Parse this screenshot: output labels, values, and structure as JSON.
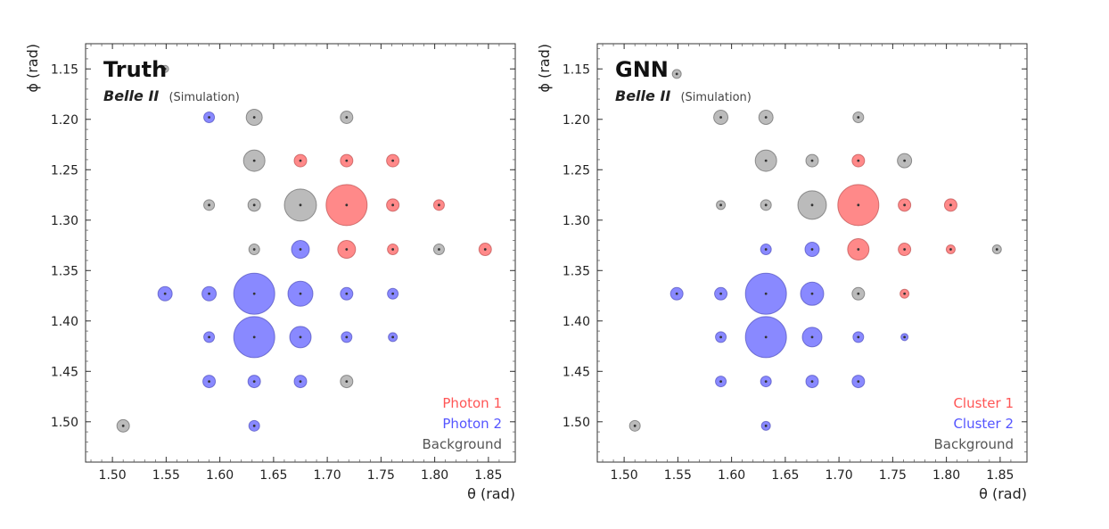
{
  "colors": {
    "series1": "#ff6b6b",
    "series2": "#6b6bff",
    "background": "#aaaaaa",
    "legend1": "#ff5555",
    "legend2": "#5555ff",
    "legend3": "#555555"
  },
  "chart_data": [
    {
      "type": "scatter",
      "panel_title": "Truth",
      "experiment": "Belle II",
      "experiment_note": "(Simulation)",
      "xlabel": "θ (rad)",
      "ylabel": "ϕ (rad)",
      "xlim": [
        1.475,
        1.875
      ],
      "ylim": [
        1.54,
        1.125
      ],
      "y_inverted": true,
      "x_ticks": [
        "1.50",
        "1.55",
        "1.60",
        "1.65",
        "1.70",
        "1.75",
        "1.80",
        "1.85"
      ],
      "y_ticks": [
        "1.15",
        "1.20",
        "1.25",
        "1.30",
        "1.35",
        "1.40",
        "1.45",
        "1.50"
      ],
      "legend": [
        "Photon 1",
        "Photon 2",
        "Background"
      ],
      "legend_position": "lower right",
      "points": [
        {
          "x": 1.549,
          "y": 1.15,
          "s": 4,
          "c": "bg"
        },
        {
          "x": 1.59,
          "y": 1.198,
          "s": 6,
          "c": "p2"
        },
        {
          "x": 1.632,
          "y": 1.198,
          "s": 9,
          "c": "bg"
        },
        {
          "x": 1.718,
          "y": 1.198,
          "s": 7,
          "c": "bg"
        },
        {
          "x": 1.632,
          "y": 1.241,
          "s": 12,
          "c": "bg"
        },
        {
          "x": 1.675,
          "y": 1.241,
          "s": 7,
          "c": "p1"
        },
        {
          "x": 1.718,
          "y": 1.241,
          "s": 7,
          "c": "p1"
        },
        {
          "x": 1.761,
          "y": 1.241,
          "s": 7,
          "c": "p1"
        },
        {
          "x": 1.59,
          "y": 1.285,
          "s": 6,
          "c": "bg"
        },
        {
          "x": 1.632,
          "y": 1.285,
          "s": 7,
          "c": "bg"
        },
        {
          "x": 1.675,
          "y": 1.285,
          "s": 18,
          "c": "bg"
        },
        {
          "x": 1.718,
          "y": 1.285,
          "s": 23,
          "c": "p1"
        },
        {
          "x": 1.761,
          "y": 1.285,
          "s": 7,
          "c": "p1"
        },
        {
          "x": 1.804,
          "y": 1.285,
          "s": 6,
          "c": "p1"
        },
        {
          "x": 1.632,
          "y": 1.329,
          "s": 6,
          "c": "bg"
        },
        {
          "x": 1.675,
          "y": 1.329,
          "s": 10,
          "c": "p2"
        },
        {
          "x": 1.718,
          "y": 1.329,
          "s": 10,
          "c": "p1"
        },
        {
          "x": 1.761,
          "y": 1.329,
          "s": 6,
          "c": "p1"
        },
        {
          "x": 1.804,
          "y": 1.329,
          "s": 6,
          "c": "bg"
        },
        {
          "x": 1.847,
          "y": 1.329,
          "s": 7,
          "c": "p1"
        },
        {
          "x": 1.549,
          "y": 1.373,
          "s": 8,
          "c": "p2"
        },
        {
          "x": 1.59,
          "y": 1.373,
          "s": 8,
          "c": "p2"
        },
        {
          "x": 1.632,
          "y": 1.373,
          "s": 23,
          "c": "p2"
        },
        {
          "x": 1.675,
          "y": 1.373,
          "s": 14,
          "c": "p2"
        },
        {
          "x": 1.718,
          "y": 1.373,
          "s": 7,
          "c": "p2"
        },
        {
          "x": 1.761,
          "y": 1.373,
          "s": 6,
          "c": "p2"
        },
        {
          "x": 1.59,
          "y": 1.416,
          "s": 6,
          "c": "p2"
        },
        {
          "x": 1.632,
          "y": 1.416,
          "s": 23,
          "c": "p2"
        },
        {
          "x": 1.675,
          "y": 1.416,
          "s": 12,
          "c": "p2"
        },
        {
          "x": 1.718,
          "y": 1.416,
          "s": 6,
          "c": "p2"
        },
        {
          "x": 1.761,
          "y": 1.416,
          "s": 5,
          "c": "p2"
        },
        {
          "x": 1.59,
          "y": 1.46,
          "s": 7,
          "c": "p2"
        },
        {
          "x": 1.632,
          "y": 1.46,
          "s": 7,
          "c": "p2"
        },
        {
          "x": 1.675,
          "y": 1.46,
          "s": 7,
          "c": "p2"
        },
        {
          "x": 1.718,
          "y": 1.46,
          "s": 7,
          "c": "bg"
        },
        {
          "x": 1.51,
          "y": 1.504,
          "s": 7,
          "c": "bg"
        },
        {
          "x": 1.632,
          "y": 1.504,
          "s": 6,
          "c": "p2"
        }
      ]
    },
    {
      "type": "scatter",
      "panel_title": "GNN",
      "experiment": "Belle II",
      "experiment_note": "(Simulation)",
      "xlabel": "θ (rad)",
      "ylabel": "ϕ (rad)",
      "xlim": [
        1.475,
        1.875
      ],
      "ylim": [
        1.54,
        1.125
      ],
      "y_inverted": true,
      "x_ticks": [
        "1.50",
        "1.55",
        "1.60",
        "1.65",
        "1.70",
        "1.75",
        "1.80",
        "1.85"
      ],
      "y_ticks": [
        "1.15",
        "1.20",
        "1.25",
        "1.30",
        "1.35",
        "1.40",
        "1.45",
        "1.50"
      ],
      "legend": [
        "Cluster 1",
        "Cluster 2",
        "Background"
      ],
      "legend_position": "lower right",
      "points": [
        {
          "x": 1.549,
          "y": 1.155,
          "s": 5,
          "c": "bg"
        },
        {
          "x": 1.59,
          "y": 1.198,
          "s": 8,
          "c": "bg"
        },
        {
          "x": 1.632,
          "y": 1.198,
          "s": 8,
          "c": "bg"
        },
        {
          "x": 1.718,
          "y": 1.198,
          "s": 6,
          "c": "bg"
        },
        {
          "x": 1.632,
          "y": 1.241,
          "s": 12,
          "c": "bg"
        },
        {
          "x": 1.675,
          "y": 1.241,
          "s": 7,
          "c": "bg"
        },
        {
          "x": 1.718,
          "y": 1.241,
          "s": 7,
          "c": "p1"
        },
        {
          "x": 1.761,
          "y": 1.241,
          "s": 8,
          "c": "bg"
        },
        {
          "x": 1.59,
          "y": 1.285,
          "s": 5,
          "c": "bg"
        },
        {
          "x": 1.632,
          "y": 1.285,
          "s": 6,
          "c": "bg"
        },
        {
          "x": 1.675,
          "y": 1.285,
          "s": 16,
          "c": "bg"
        },
        {
          "x": 1.718,
          "y": 1.285,
          "s": 23,
          "c": "p1"
        },
        {
          "x": 1.761,
          "y": 1.285,
          "s": 7,
          "c": "p1"
        },
        {
          "x": 1.804,
          "y": 1.285,
          "s": 7,
          "c": "p1"
        },
        {
          "x": 1.632,
          "y": 1.329,
          "s": 6,
          "c": "p2"
        },
        {
          "x": 1.675,
          "y": 1.329,
          "s": 8,
          "c": "p2"
        },
        {
          "x": 1.718,
          "y": 1.329,
          "s": 12,
          "c": "p1"
        },
        {
          "x": 1.761,
          "y": 1.329,
          "s": 7,
          "c": "p1"
        },
        {
          "x": 1.804,
          "y": 1.329,
          "s": 5,
          "c": "p1"
        },
        {
          "x": 1.847,
          "y": 1.329,
          "s": 5,
          "c": "bg"
        },
        {
          "x": 1.549,
          "y": 1.373,
          "s": 7,
          "c": "p2"
        },
        {
          "x": 1.59,
          "y": 1.373,
          "s": 7,
          "c": "p2"
        },
        {
          "x": 1.632,
          "y": 1.373,
          "s": 23,
          "c": "p2"
        },
        {
          "x": 1.675,
          "y": 1.373,
          "s": 13,
          "c": "p2"
        },
        {
          "x": 1.718,
          "y": 1.373,
          "s": 7,
          "c": "bg"
        },
        {
          "x": 1.761,
          "y": 1.373,
          "s": 5,
          "c": "p1"
        },
        {
          "x": 1.59,
          "y": 1.416,
          "s": 6,
          "c": "p2"
        },
        {
          "x": 1.632,
          "y": 1.416,
          "s": 23,
          "c": "p2"
        },
        {
          "x": 1.675,
          "y": 1.416,
          "s": 11,
          "c": "p2"
        },
        {
          "x": 1.718,
          "y": 1.416,
          "s": 6,
          "c": "p2"
        },
        {
          "x": 1.761,
          "y": 1.416,
          "s": 4,
          "c": "p2"
        },
        {
          "x": 1.59,
          "y": 1.46,
          "s": 6,
          "c": "p2"
        },
        {
          "x": 1.632,
          "y": 1.46,
          "s": 6,
          "c": "p2"
        },
        {
          "x": 1.675,
          "y": 1.46,
          "s": 7,
          "c": "p2"
        },
        {
          "x": 1.718,
          "y": 1.46,
          "s": 7,
          "c": "p2"
        },
        {
          "x": 1.51,
          "y": 1.504,
          "s": 6,
          "c": "bg"
        },
        {
          "x": 1.632,
          "y": 1.504,
          "s": 5,
          "c": "p2"
        }
      ]
    }
  ]
}
